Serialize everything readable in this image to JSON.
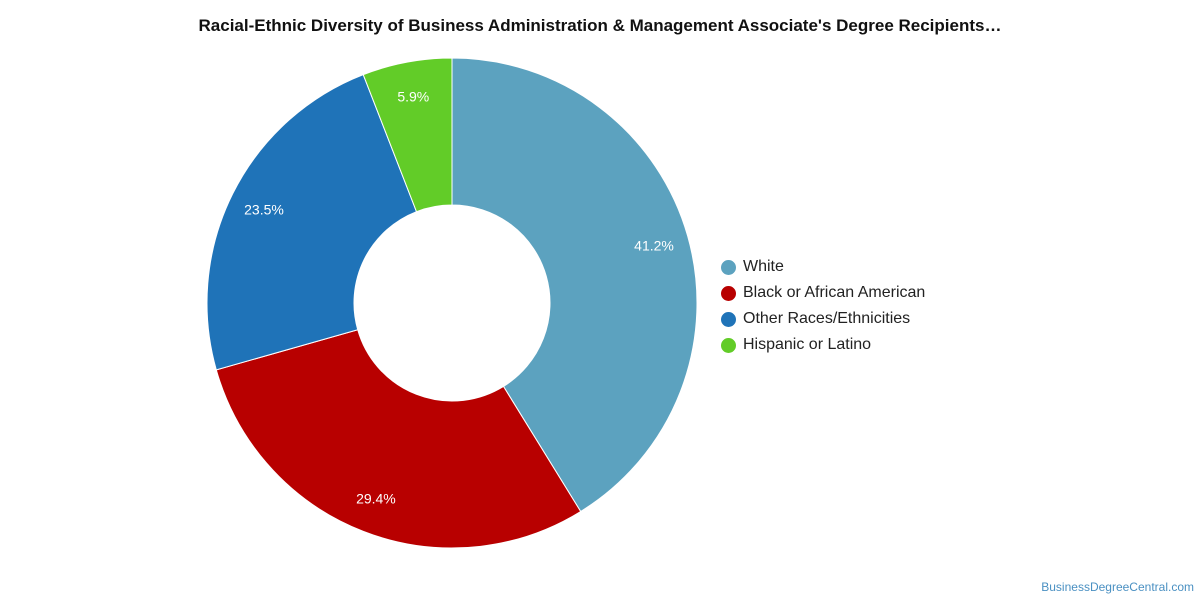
{
  "chart_data": {
    "type": "pie",
    "title": "Racial-Ethnic Diversity of Business Administration & Management Associate's Degree Recipients…",
    "categories": [
      "White",
      "Black or African American",
      "Other Races/Ethnicities",
      "Hispanic or Latino"
    ],
    "values": [
      41.2,
      29.4,
      23.5,
      5.9
    ],
    "value_labels": [
      "41.2%",
      "29.4%",
      "23.5%",
      "5.9%"
    ],
    "colors": [
      "#5ca2bf",
      "#b80000",
      "#1f73b8",
      "#62cc28"
    ],
    "donut": true,
    "legend_position": "right"
  },
  "watermark": "BusinessDegreeCentral.com"
}
